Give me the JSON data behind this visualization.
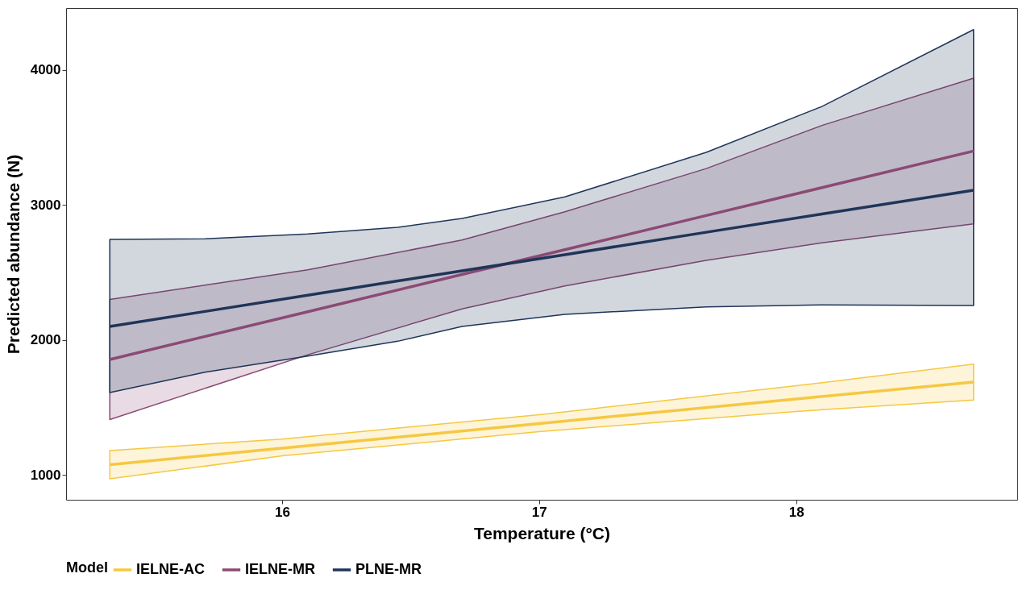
{
  "chart_data": {
    "type": "line",
    "xlabel": "Temperature (°C)",
    "ylabel": "Predicted abundance (N)",
    "legend_title": "Model",
    "legend": "bottom",
    "grid": false,
    "xlim": [
      15.16,
      18.86
    ],
    "ylim": [
      815,
      4460
    ],
    "xticks": [
      16,
      17,
      18
    ],
    "yticks": [
      1000,
      2000,
      3000,
      4000
    ],
    "series": [
      {
        "name": "IELNE-AC",
        "color": "#f5c842",
        "x": [
          15.33,
          16,
          17,
          18,
          18.69
        ],
        "values": [
          1075,
          1197,
          1380,
          1562,
          1688
        ],
        "lower": [
          970,
          1140,
          1320,
          1470,
          1555
        ],
        "upper": [
          1180,
          1265,
          1445,
          1660,
          1820
        ]
      },
      {
        "name": "IELNE-MR",
        "color": "#8b4a75",
        "x": [
          15.33,
          16.1,
          16.7,
          17.1,
          17.65,
          18.1,
          18.69
        ],
        "values": [
          1855,
          2209,
          2485,
          2669,
          2922,
          3129,
          3400
        ],
        "lower": [
          1410,
          1890,
          2230,
          2400,
          2590,
          2720,
          2860
        ],
        "upper": [
          2300,
          2520,
          2740,
          2950,
          3270,
          3590,
          3940
        ]
      },
      {
        "name": "PLNE-MR",
        "color": "#1f3558",
        "x": [
          15.33,
          15.7,
          16.1,
          16.45,
          16.7,
          17.1,
          17.65,
          18.1,
          18.69
        ],
        "values": [
          2100,
          2211,
          2331,
          2437,
          2512,
          2632,
          2798,
          2933,
          3110
        ],
        "lower": [
          1610,
          1760,
          1880,
          1990,
          2100,
          2190,
          2245,
          2260,
          2255
        ],
        "upper": [
          2745,
          2750,
          2785,
          2835,
          2900,
          3060,
          3390,
          3730,
          4300
        ]
      }
    ]
  }
}
